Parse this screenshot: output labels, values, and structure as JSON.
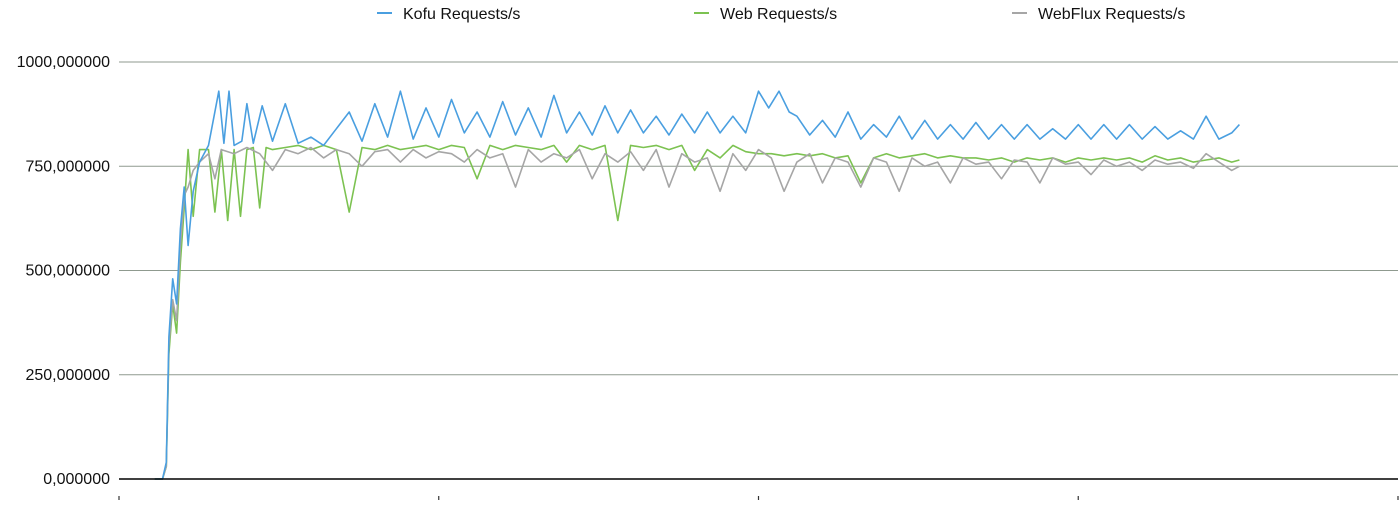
{
  "chart_data": {
    "type": "line",
    "title": "",
    "xlabel": "",
    "ylabel": "",
    "ylim": [
      0,
      1000
    ],
    "xlim": [
      0,
      100
    ],
    "y_ticks": [
      {
        "value": 0,
        "label": "0,000000"
      },
      {
        "value": 250,
        "label": "250,000000"
      },
      {
        "value": 500,
        "label": "500,000000"
      },
      {
        "value": 750,
        "label": "750,000000"
      },
      {
        "value": 1000,
        "label": "1000,000000"
      }
    ],
    "x_ticks": [
      0,
      25,
      50,
      75,
      100
    ],
    "grid": true,
    "legend_position": "top",
    "series": [
      {
        "name": "Kofu Requests/s",
        "color": "#4a9fe0",
        "x": [
          2.8,
          3.4,
          3.7,
          3.9,
          4.2,
          4.5,
          4.8,
          5.1,
          5.4,
          5.8,
          6.3,
          7.0,
          7.8,
          8.2,
          8.6,
          9.0,
          9.6,
          10.0,
          10.5,
          11.2,
          12.0,
          13.0,
          14.0,
          15.0,
          16.0,
          17.0,
          18.0,
          19.0,
          20.0,
          21.0,
          22.0,
          23.0,
          24.0,
          25.0,
          26.0,
          27.0,
          28.0,
          29.0,
          30.0,
          31.0,
          32.0,
          33.0,
          34.0,
          35.0,
          36.0,
          37.0,
          38.0,
          39.0,
          40.0,
          41.0,
          42.0,
          43.0,
          44.0,
          45.0,
          46.0,
          47.0,
          48.0,
          49.0,
          50.0,
          50.8,
          51.6,
          52.4,
          53.0,
          54.0,
          55.0,
          56.0,
          57.0,
          58.0,
          59.0,
          60.0,
          61.0,
          62.0,
          63.0,
          64.0,
          65.0,
          66.0,
          67.0,
          68.0,
          69.0,
          70.0,
          71.0,
          72.0,
          73.0,
          74.0,
          75.0,
          76.0,
          77.0,
          78.0,
          79.0,
          80.0,
          81.0,
          82.0,
          83.0,
          84.0,
          85.0,
          86.0,
          87.0,
          87.6
        ],
        "y": [
          0,
          0,
          40,
          340,
          480,
          420,
          600,
          700,
          560,
          690,
          760,
          800,
          930,
          805,
          930,
          800,
          810,
          900,
          805,
          895,
          810,
          900,
          805,
          820,
          800,
          840,
          880,
          810,
          900,
          820,
          930,
          815,
          890,
          820,
          910,
          830,
          880,
          820,
          905,
          825,
          890,
          820,
          920,
          830,
          880,
          825,
          895,
          830,
          885,
          830,
          870,
          825,
          875,
          830,
          880,
          830,
          870,
          830,
          930,
          890,
          930,
          880,
          870,
          825,
          860,
          820,
          880,
          815,
          850,
          820,
          870,
          815,
          860,
          815,
          850,
          815,
          855,
          815,
          850,
          815,
          850,
          815,
          840,
          815,
          850,
          815,
          850,
          815,
          850,
          815,
          845,
          815,
          835,
          815,
          870,
          815,
          830,
          850
        ]
      },
      {
        "name": "Web Requests/s",
        "color": "#7cc251",
        "x": [
          2.8,
          3.4,
          3.7,
          3.9,
          4.2,
          4.5,
          4.8,
          5.1,
          5.4,
          5.8,
          6.3,
          7.0,
          7.5,
          8.0,
          8.5,
          9.0,
          9.5,
          10.0,
          10.5,
          11.0,
          11.5,
          12.0,
          13.0,
          14.0,
          15.0,
          16.0,
          17.0,
          18.0,
          19.0,
          20.0,
          21.0,
          22.0,
          23.0,
          24.0,
          25.0,
          26.0,
          27.0,
          28.0,
          29.0,
          30.0,
          31.0,
          32.0,
          33.0,
          34.0,
          35.0,
          36.0,
          37.0,
          38.0,
          39.0,
          40.0,
          41.0,
          42.0,
          43.0,
          44.0,
          45.0,
          46.0,
          47.0,
          48.0,
          49.0,
          50.0,
          51.0,
          52.0,
          53.0,
          54.0,
          55.0,
          56.0,
          57.0,
          58.0,
          59.0,
          60.0,
          61.0,
          62.0,
          63.0,
          64.0,
          65.0,
          66.0,
          67.0,
          68.0,
          69.0,
          70.0,
          71.0,
          72.0,
          73.0,
          74.0,
          75.0,
          76.0,
          77.0,
          78.0,
          79.0,
          80.0,
          81.0,
          82.0,
          83.0,
          84.0,
          85.0,
          86.0,
          87.0,
          87.6
        ],
        "y": [
          0,
          0,
          30,
          300,
          420,
          350,
          520,
          650,
          790,
          630,
          790,
          790,
          640,
          790,
          620,
          790,
          630,
          790,
          795,
          650,
          795,
          790,
          795,
          800,
          790,
          800,
          790,
          640,
          795,
          790,
          800,
          790,
          795,
          800,
          790,
          800,
          795,
          720,
          800,
          790,
          800,
          795,
          790,
          800,
          760,
          800,
          790,
          800,
          620,
          800,
          795,
          800,
          790,
          800,
          740,
          790,
          770,
          800,
          785,
          780,
          780,
          775,
          780,
          775,
          780,
          770,
          775,
          710,
          770,
          780,
          770,
          775,
          780,
          770,
          775,
          770,
          770,
          765,
          770,
          760,
          770,
          765,
          770,
          760,
          770,
          765,
          770,
          765,
          770,
          760,
          775,
          765,
          770,
          760,
          765,
          770,
          760,
          765
        ]
      },
      {
        "name": "WebFlux Requests/s",
        "color": "#a6a6a6",
        "x": [
          2.8,
          3.4,
          3.7,
          3.9,
          4.2,
          4.5,
          4.8,
          5.1,
          5.4,
          5.8,
          6.3,
          7.0,
          7.5,
          8.0,
          9.0,
          10.0,
          11.0,
          12.0,
          13.0,
          14.0,
          15.0,
          16.0,
          17.0,
          18.0,
          19.0,
          20.0,
          21.0,
          22.0,
          23.0,
          24.0,
          25.0,
          26.0,
          27.0,
          28.0,
          29.0,
          30.0,
          31.0,
          32.0,
          33.0,
          34.0,
          35.0,
          36.0,
          37.0,
          38.0,
          39.0,
          40.0,
          41.0,
          42.0,
          43.0,
          44.0,
          45.0,
          46.0,
          47.0,
          48.0,
          49.0,
          50.0,
          51.0,
          52.0,
          53.0,
          54.0,
          55.0,
          56.0,
          57.0,
          58.0,
          59.0,
          60.0,
          61.0,
          62.0,
          63.0,
          64.0,
          65.0,
          66.0,
          67.0,
          68.0,
          69.0,
          70.0,
          71.0,
          72.0,
          73.0,
          74.0,
          75.0,
          76.0,
          77.0,
          78.0,
          79.0,
          80.0,
          81.0,
          82.0,
          83.0,
          84.0,
          85.0,
          86.0,
          87.0,
          87.6
        ],
        "y": [
          0,
          0,
          30,
          320,
          430,
          380,
          560,
          680,
          700,
          740,
          760,
          780,
          720,
          790,
          780,
          795,
          780,
          740,
          790,
          780,
          795,
          770,
          790,
          780,
          750,
          785,
          790,
          760,
          790,
          770,
          785,
          780,
          760,
          790,
          770,
          780,
          700,
          790,
          760,
          780,
          770,
          790,
          720,
          780,
          760,
          785,
          740,
          790,
          700,
          780,
          760,
          770,
          690,
          780,
          740,
          790,
          770,
          690,
          760,
          780,
          710,
          770,
          760,
          700,
          770,
          760,
          690,
          770,
          750,
          760,
          710,
          770,
          755,
          760,
          720,
          765,
          760,
          710,
          770,
          755,
          760,
          730,
          765,
          750,
          760,
          740,
          765,
          755,
          760,
          745,
          780,
          760,
          740,
          750
        ]
      }
    ]
  }
}
